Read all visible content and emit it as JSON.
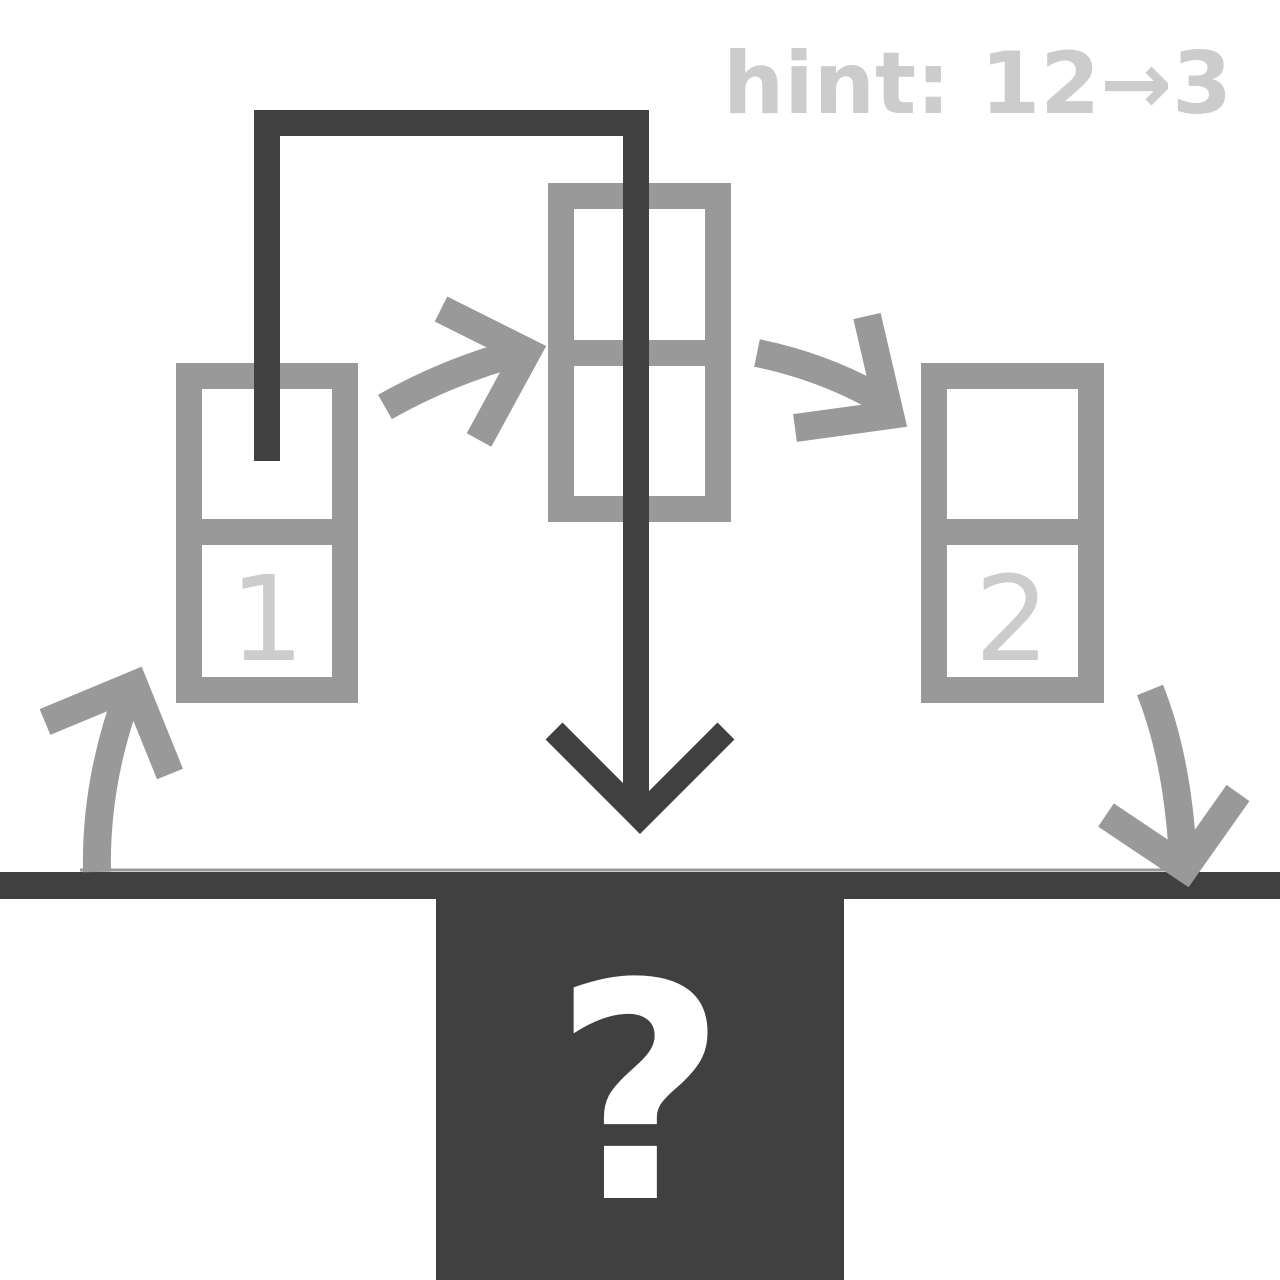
{
  "hint": {
    "text": "hint: 12→3"
  },
  "boxes": {
    "left": {
      "top_label": "",
      "bottom_label": "1"
    },
    "middle": {
      "top_label": "",
      "bottom_label": ""
    },
    "right": {
      "top_label": "",
      "bottom_label": "2"
    }
  },
  "answer_slot": {
    "label": "?"
  },
  "colors": {
    "background": "#ffffff",
    "dark": "#404040",
    "mid_gray": "#999999",
    "light_gray": "#cccccc",
    "answer_text": "#ffffff"
  },
  "icons": {
    "curved_arrows": "curved-arrow-icon",
    "drop_arrow": "down-arrow-icon"
  }
}
